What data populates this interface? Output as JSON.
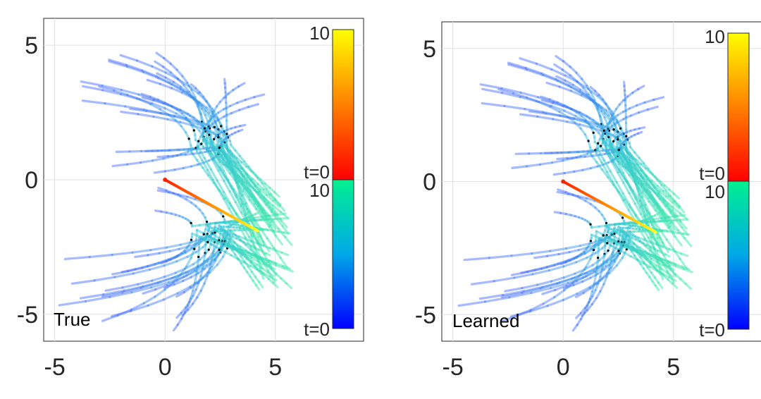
{
  "chart_data": [
    {
      "type": "line",
      "panel_label": "True",
      "xlim": [
        -5.5,
        9.0
      ],
      "ylim": [
        -6.0,
        6.0
      ],
      "xticks": [
        "-5",
        "0",
        "5"
      ],
      "yticks": [
        "5",
        "0",
        "-5"
      ],
      "grid": true,
      "colorbar": {
        "upper": {
          "top_label": "10",
          "bottom_label": "t=0",
          "colors": [
            "#ff0000",
            "#ff8000",
            "#ffff00"
          ]
        },
        "lower": {
          "top_label": "10",
          "bottom_label": "t=0",
          "colors": [
            "#0000ff",
            "#00bfff",
            "#00ff80"
          ]
        }
      },
      "highlight_trajectory": {
        "start": [
          0.0,
          0.0
        ],
        "end": [
          4.2,
          -1.9
        ]
      }
    },
    {
      "type": "line",
      "panel_label": "Learned",
      "xlim": [
        -5.5,
        9.0
      ],
      "ylim": [
        -6.0,
        6.0
      ],
      "xticks": [
        "-5",
        "0",
        "5"
      ],
      "yticks": [
        "5",
        "0",
        "-5"
      ],
      "grid": true,
      "colorbar": {
        "upper": {
          "top_label": "10",
          "bottom_label": "t=0",
          "colors": [
            "#ff0000",
            "#ff8000",
            "#ffff00"
          ]
        },
        "lower": {
          "top_label": "10",
          "bottom_label": "t=0",
          "colors": [
            "#0000ff",
            "#00bfff",
            "#00ff80"
          ]
        }
      },
      "highlight_trajectory": {
        "start": [
          0.0,
          0.0
        ],
        "end": [
          4.2,
          -1.9
        ]
      }
    }
  ]
}
